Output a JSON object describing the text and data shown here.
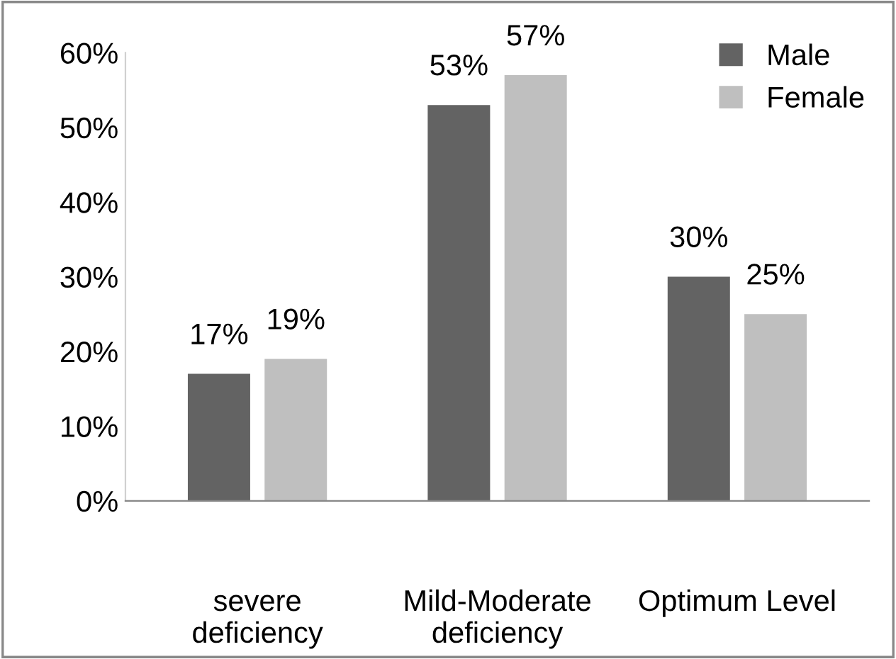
{
  "chart_data": {
    "type": "bar",
    "categories": [
      "severe\ndeficiency",
      "Mild-Moderate\ndeficiency",
      "Optimum Level"
    ],
    "series": [
      {
        "name": "Male",
        "color": "#636363",
        "values": [
          17,
          53,
          30
        ],
        "value_labels": [
          "17%",
          "53%",
          "30%"
        ]
      },
      {
        "name": "Female",
        "color": "#bfbfbf",
        "values": [
          19,
          57,
          25
        ],
        "value_labels": [
          "19%",
          "57%",
          "25%"
        ]
      }
    ],
    "ylim": [
      0,
      60
    ],
    "yticks": [
      {
        "value": 0,
        "label": "0%"
      },
      {
        "value": 10,
        "label": "10%"
      },
      {
        "value": 20,
        "label": "20%"
      },
      {
        "value": 30,
        "label": "30%"
      },
      {
        "value": 40,
        "label": "40%"
      },
      {
        "value": 50,
        "label": "50%"
      },
      {
        "value": 60,
        "label": "60%"
      }
    ],
    "grid": false,
    "legend": "top right"
  }
}
